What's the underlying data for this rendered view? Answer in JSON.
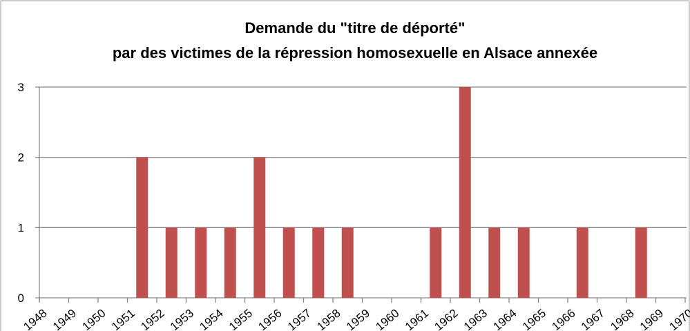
{
  "chart_data": {
    "type": "bar",
    "title": [
      "Demande du \"titre de déporté\"",
      "par des victimes de la répression homosexuelle en Alsace annexée"
    ],
    "categories": [
      "1948",
      "1949",
      "1950",
      "1951",
      "1952",
      "1953",
      "1954",
      "1955",
      "1956",
      "1957",
      "1958",
      "1959",
      "1960",
      "1961",
      "1962",
      "1963",
      "1964",
      "1965",
      "1966",
      "1967",
      "1968",
      "1969",
      "1970"
    ],
    "values": [
      0,
      0,
      0,
      2,
      1,
      1,
      1,
      2,
      1,
      1,
      1,
      0,
      0,
      1,
      3,
      1,
      1,
      0,
      1,
      0,
      1,
      0,
      0
    ],
    "color": "#c0504d",
    "ylim": [
      0,
      3
    ],
    "yticks": [
      0,
      1,
      2,
      3
    ],
    "grid": true
  }
}
